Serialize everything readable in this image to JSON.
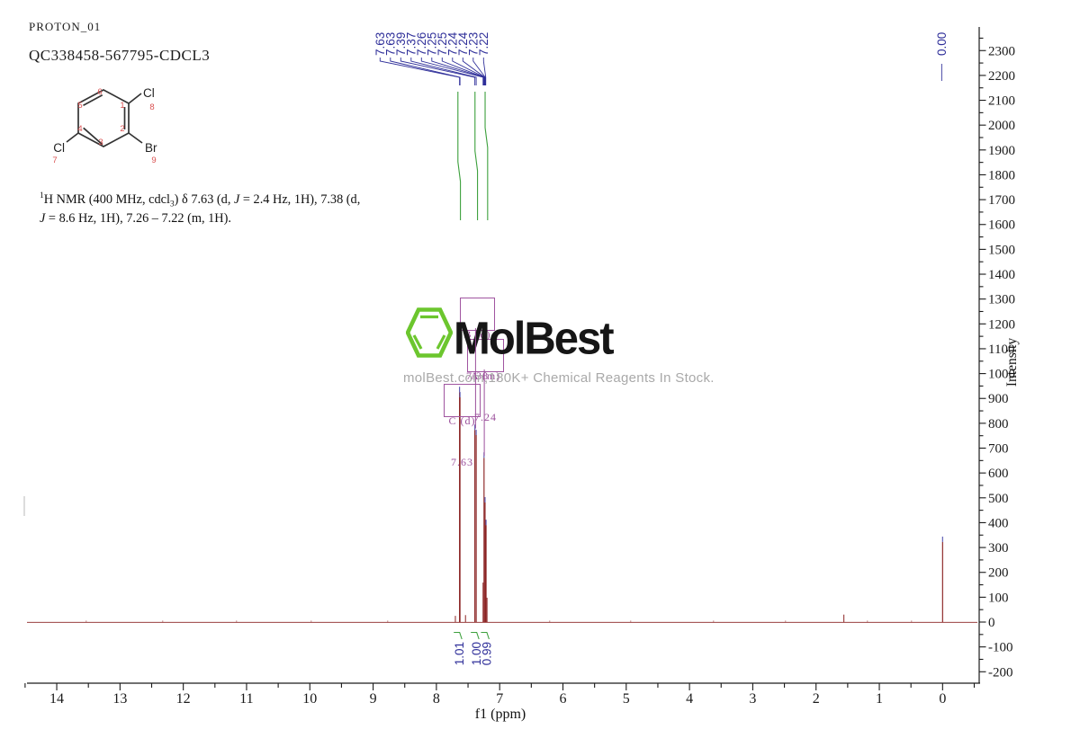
{
  "header": {
    "experiment": "PROTON_01",
    "sample": "QC338458-567795-CDCL3"
  },
  "molecule": {
    "sub_top_right": "Cl",
    "sub_top_right_num": "8",
    "sub_bottom_right": "Br",
    "sub_bottom_right_num": "9",
    "sub_bottom_left": "Cl",
    "sub_bottom_left_num": "7",
    "ring_numbers": [
      "1",
      "2",
      "3",
      "4",
      "5",
      "6"
    ]
  },
  "caption": {
    "sup": "1",
    "seg1": "H NMR (400 MHz, cdcl",
    "sub": "3",
    "seg2": ") δ 7.63 (d, ",
    "j1": "J",
    "seg3": " = 2.4 Hz, 1H), 7.38 (d, ",
    "j2": "J",
    "seg4": " = 8.6 Hz, 1H), 7.26 – 7.22 (m, 1H)."
  },
  "watermark": {
    "brand": "MolBest",
    "tagline": "molBest.com,180K+ Chemical Reagents In Stock."
  },
  "axes": {
    "xlabel": "f1 (ppm)",
    "ylabel": "Intensity"
  },
  "annotations": {
    "boxes": [
      {
        "row1": "B (d)",
        "row2": "7.38"
      },
      {
        "row1": "A (m)",
        "row2": "7.24"
      },
      {
        "row1": "C (d)",
        "row2": "7.63"
      }
    ]
  },
  "colors": {
    "peak_maroon": "#8b2323",
    "peak_tip_blue": "#5a5ab2",
    "label_blue": "#30309a",
    "integral_green": "#3da03d",
    "annotation_purple": "#9b4f9b",
    "axis": "#1a1a1a",
    "watermark_green": "#6cc62e"
  },
  "chart_data": {
    "type": "line",
    "title": "1H NMR spectrum (PROTON_01) of QC338458-567795 in CDCl3",
    "xlabel": "f1 (ppm)",
    "ylabel": "Intensity",
    "xlim": [
      14.47,
      -0.55
    ],
    "ylim": [
      -246,
      2395
    ],
    "x_major_ticks": [
      14,
      13,
      12,
      11,
      10,
      9,
      8,
      7,
      6,
      5,
      4,
      3,
      2,
      1,
      0
    ],
    "y_major_ticks": [
      2300,
      2200,
      2100,
      2000,
      1900,
      1800,
      1700,
      1600,
      1500,
      1400,
      1300,
      1200,
      1100,
      1000,
      900,
      800,
      700,
      600,
      500,
      400,
      300,
      200,
      100,
      0,
      -100,
      -200
    ],
    "grid": false,
    "peaks": [
      {
        "ppm": 7.7,
        "intensity": 25
      },
      {
        "ppm": 7.634,
        "intensity": 947
      },
      {
        "ppm": 7.627,
        "intensity": 926
      },
      {
        "ppm": 7.54,
        "intensity": 28
      },
      {
        "ppm": 7.392,
        "intensity": 795
      },
      {
        "ppm": 7.371,
        "intensity": 774
      },
      {
        "ppm": 7.262,
        "intensity": 159
      },
      {
        "ppm": 7.247,
        "intensity": 683
      },
      {
        "ppm": 7.231,
        "intensity": 503
      },
      {
        "ppm": 7.215,
        "intensity": 412
      },
      {
        "ppm": 7.2,
        "intensity": 98
      },
      {
        "ppm": 1.56,
        "intensity": 30
      },
      {
        "ppm": 0.0,
        "intensity": 344
      }
    ],
    "peak_pick_labels": [
      {
        "text": "7.63",
        "ppm": 7.634
      },
      {
        "text": "7.63",
        "ppm": 7.627
      },
      {
        "text": "7.39",
        "ppm": 7.392
      },
      {
        "text": "7.37",
        "ppm": 7.371
      },
      {
        "text": "7.26",
        "ppm": 7.262
      },
      {
        "text": "7.25",
        "ppm": 7.254
      },
      {
        "text": "7.25",
        "ppm": 7.247
      },
      {
        "text": "7.24",
        "ppm": 7.24
      },
      {
        "text": "7.24",
        "ppm": 7.235
      },
      {
        "text": "7.23",
        "ppm": 7.228
      },
      {
        "text": "7.22",
        "ppm": 7.22
      }
    ],
    "tms_label": {
      "text": "0.00",
      "ppm": 0.0
    },
    "integrals": [
      {
        "value": "1.01",
        "ppm": 7.64
      },
      {
        "value": "1.00",
        "ppm": 7.37
      },
      {
        "value": "0.99",
        "ppm": 7.21
      }
    ],
    "multiplets": [
      {
        "id": "B",
        "mult": "(d)",
        "shift": "7.38",
        "leader_ppm": 7.381,
        "leader_to_intensity": 790
      },
      {
        "id": "A",
        "mult": "(m)",
        "shift": "7.24",
        "leader_ppm": 7.243,
        "leader_to_intensity": 680
      }
    ]
  }
}
